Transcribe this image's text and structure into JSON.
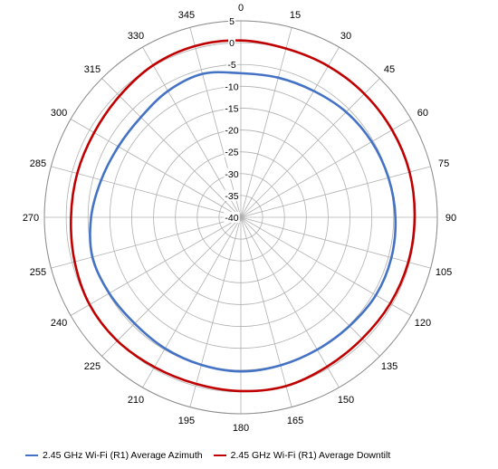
{
  "chart_data": {
    "type": "polar",
    "angle_labels": [
      "0",
      "15",
      "30",
      "45",
      "60",
      "75",
      "90",
      "105",
      "120",
      "135",
      "150",
      "165",
      "180",
      "195",
      "210",
      "225",
      "240",
      "255",
      "270",
      "285",
      "300",
      "315",
      "330",
      "345"
    ],
    "radial_labels": [
      "5",
      "0",
      "-5",
      "-10",
      "-15",
      "-20",
      "-25",
      "-30",
      "-35",
      "-40"
    ],
    "rlim": [
      -40,
      5
    ],
    "angular_grid_step_deg": 15,
    "grid": true,
    "legend_position": "bottom",
    "series": [
      {
        "name": "2.45 GHz Wi-Fi (R1) Average Azimuth",
        "color": "#4472C4",
        "theta": [
          0,
          15,
          30,
          45,
          60,
          75,
          90,
          105,
          120,
          135,
          150,
          165,
          180,
          195,
          210,
          225,
          240,
          255,
          270,
          285,
          300,
          315,
          330,
          345,
          360
        ],
        "values": [
          -7,
          -6.9,
          -6.6,
          -5.9,
          -5.4,
          -5,
          -4.6,
          -4.3,
          -4.3,
          -4.8,
          -5,
          -4.9,
          -4.7,
          -5,
          -5.3,
          -5.6,
          -5.2,
          -4.8,
          -5.7,
          -6.9,
          -7.6,
          -7.6,
          -6.6,
          -6,
          -7
        ]
      },
      {
        "name": "2.45 GHz Wi-Fi (R1) Average Downtilt",
        "color": "#C00000",
        "theta": [
          0,
          15,
          30,
          45,
          60,
          75,
          90,
          105,
          120,
          135,
          150,
          165,
          180,
          195,
          210,
          225,
          240,
          255,
          270,
          285,
          300,
          315,
          330,
          345,
          360
        ],
        "values": [
          0.5,
          0,
          0,
          0,
          0,
          0,
          -0.2,
          -0.3,
          -0.5,
          -0.7,
          -0.5,
          0,
          -0.2,
          -0.5,
          -0.4,
          0,
          0,
          -0.6,
          -1.1,
          -1.2,
          -1.2,
          -0.7,
          0.2,
          0.6,
          0.5
        ]
      }
    ]
  },
  "legend": {
    "azimuth": "2.45 GHz Wi-Fi (R1) Average Azimuth",
    "downtilt": "2.45 GHz Wi-Fi (R1) Average Downtilt"
  },
  "colors": {
    "grid": "#b0b0b0",
    "azimuth": "#4472C4",
    "downtilt": "#C00000"
  }
}
